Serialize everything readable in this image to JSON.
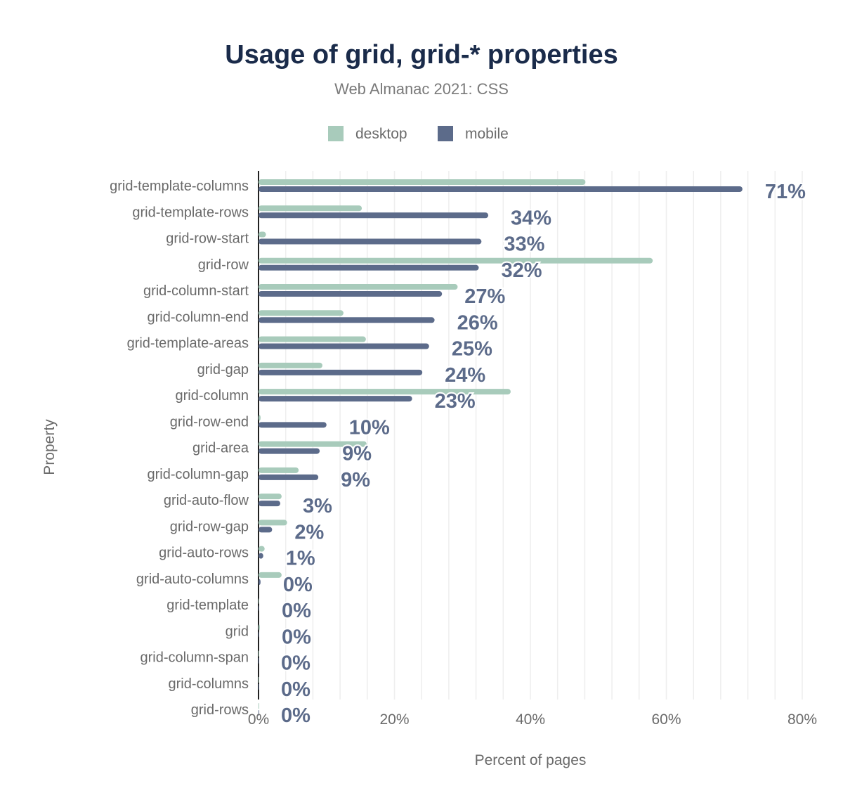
{
  "chart_data": {
    "type": "bar",
    "orientation": "horizontal",
    "title": "Usage of grid, grid-* properties",
    "subtitle": "Web Almanac 2021: CSS",
    "xlabel": "Percent of pages",
    "ylabel": "Property",
    "xlim": [
      0,
      80
    ],
    "xticks": [
      "0%",
      "20%",
      "40%",
      "60%",
      "80%"
    ],
    "xtick_values": [
      0,
      20,
      40,
      60,
      80
    ],
    "grid": true,
    "legend_position": "top",
    "categories": [
      "grid-template-columns",
      "grid-template-rows",
      "grid-row-start",
      "grid-row",
      "grid-column-start",
      "grid-column-end",
      "grid-template-areas",
      "grid-gap",
      "grid-column",
      "grid-row-end",
      "grid-area",
      "grid-column-gap",
      "grid-auto-flow",
      "grid-row-gap",
      "grid-auto-rows",
      "grid-auto-columns",
      "grid-template",
      "grid",
      "grid-column-span",
      "grid-columns",
      "grid-rows"
    ],
    "series": [
      {
        "name": "desktop",
        "color": "#a8cbbb",
        "values": [
          48.1,
          15.2,
          1.1,
          58.0,
          29.3,
          12.5,
          15.8,
          9.4,
          37.1,
          0.3,
          15.9,
          5.9,
          3.4,
          4.2,
          0.9,
          3.4,
          0.1,
          0.2,
          0.0,
          0.0,
          0.0
        ]
      },
      {
        "name": "mobile",
        "color": "#5c6b8a",
        "values": [
          71.2,
          33.8,
          32.8,
          32.4,
          27.0,
          25.9,
          25.1,
          24.1,
          22.6,
          10.0,
          9.0,
          8.8,
          3.2,
          2.0,
          0.7,
          0.3,
          0.1,
          0.1,
          0.0,
          0.0,
          0.0
        ],
        "data_labels": [
          "71%",
          "34%",
          "33%",
          "32%",
          "27%",
          "26%",
          "25%",
          "24%",
          "23%",
          "10%",
          "9%",
          "9%",
          "3%",
          "2%",
          "1%",
          "0%",
          "0%",
          "0%",
          "0%",
          "0%",
          "0%"
        ]
      }
    ]
  }
}
